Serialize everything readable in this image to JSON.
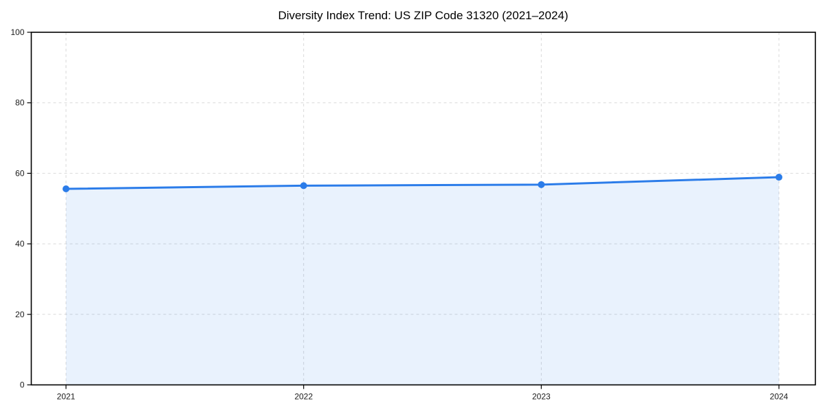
{
  "chart_data": {
    "type": "area",
    "title": "Diversity Index Trend: US ZIP Code 31320 (2021–2024)",
    "categories": [
      "2021",
      "2022",
      "2023",
      "2024"
    ],
    "series": [
      {
        "name": "Diversity Index",
        "values": [
          55.6,
          56.5,
          56.8,
          58.9
        ]
      }
    ],
    "xlabel": "",
    "ylabel": "",
    "ylim": [
      0,
      100
    ],
    "yticks": [
      0,
      20,
      40,
      60,
      80,
      100
    ],
    "grid": true,
    "grid_style": "dashed",
    "legend": "none",
    "colors": {
      "line": "#2b7ce9",
      "marker": "#2b7ce9",
      "fill": "#2b7ce9",
      "fill_opacity": 0.1,
      "grid": "#d9d9d9",
      "spine": "#000000",
      "tick": "#000000",
      "tick_label": "#1a1a1a",
      "title": "#000000",
      "background": "#ffffff"
    }
  }
}
